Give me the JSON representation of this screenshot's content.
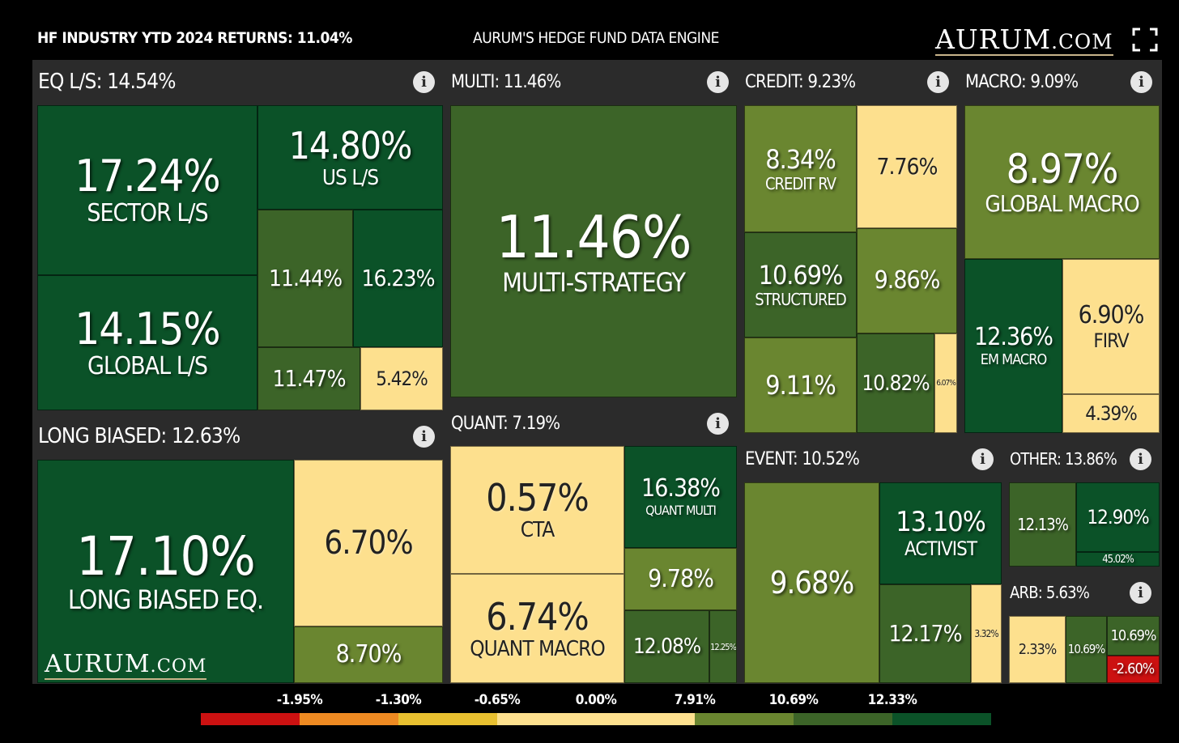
{
  "header": {
    "left": "HF INDUSTRY YTD 2024 RETURNS: 11.04%",
    "center": "AURUM'S HEDGE FUND DATA ENGINE",
    "logo_main": "AURUM",
    "logo_dot": ".COM",
    "fullscreen_icon": "fullscreen-icon"
  },
  "watermark": {
    "main": "AURUM",
    "dot": ".COM"
  },
  "colors": {
    "panel": "#2b2b2b",
    "dark_green": "#0b5228",
    "mid_green": "#3c6428",
    "olive": "#6a8630",
    "pale_yellow": "#fde08e",
    "red": "#cc1111"
  },
  "chart_data": {
    "type": "treemap",
    "groups": [
      {
        "id": "eq",
        "label": "EQ L/S: 14.54%",
        "value": 14.54,
        "tiles": [
          {
            "value_label": "17.24%",
            "name": "SECTOR L/S",
            "value": 17.24
          },
          {
            "value_label": "14.15%",
            "name": "GLOBAL L/S",
            "value": 14.15
          },
          {
            "value_label": "14.80%",
            "name": "US L/S",
            "value": 14.8
          },
          {
            "value_label": "11.44%",
            "name": "",
            "value": 11.44
          },
          {
            "value_label": "16.23%",
            "name": "",
            "value": 16.23
          },
          {
            "value_label": "11.47%",
            "name": "",
            "value": 11.47
          },
          {
            "value_label": "5.42%",
            "name": "",
            "value": 5.42
          }
        ]
      },
      {
        "id": "multi",
        "label": "MULTI: 11.46%",
        "value": 11.46,
        "tiles": [
          {
            "value_label": "11.46%",
            "name": "MULTI-STRATEGY",
            "value": 11.46
          }
        ]
      },
      {
        "id": "credit",
        "label": "CREDIT: 9.23%",
        "value": 9.23,
        "tiles": [
          {
            "value_label": "8.34%",
            "name": "CREDIT RV",
            "value": 8.34
          },
          {
            "value_label": "7.76%",
            "name": "",
            "value": 7.76
          },
          {
            "value_label": "10.69%",
            "name": "STRUCTURED",
            "value": 10.69
          },
          {
            "value_label": "9.86%",
            "name": "",
            "value": 9.86
          },
          {
            "value_label": "9.11%",
            "name": "",
            "value": 9.11
          },
          {
            "value_label": "10.82%",
            "name": "",
            "value": 10.82
          },
          {
            "value_label": "6.07%",
            "name": "",
            "value": 6.07
          }
        ]
      },
      {
        "id": "macro",
        "label": "MACRO: 9.09%",
        "value": 9.09,
        "tiles": [
          {
            "value_label": "8.97%",
            "name": "GLOBAL MACRO",
            "value": 8.97
          },
          {
            "value_label": "12.36%",
            "name": "EM MACRO",
            "value": 12.36
          },
          {
            "value_label": "6.90%",
            "name": "FIRV",
            "value": 6.9
          },
          {
            "value_label": "4.39%",
            "name": "",
            "value": 4.39
          }
        ]
      },
      {
        "id": "long",
        "label": "LONG BIASED: 12.63%",
        "value": 12.63,
        "tiles": [
          {
            "value_label": "17.10%",
            "name": "LONG BIASED EQ.",
            "value": 17.1
          },
          {
            "value_label": "6.70%",
            "name": "",
            "value": 6.7
          },
          {
            "value_label": "8.70%",
            "name": "",
            "value": 8.7
          }
        ]
      },
      {
        "id": "quant",
        "label": "QUANT: 7.19%",
        "value": 7.19,
        "tiles": [
          {
            "value_label": "0.57%",
            "name": "CTA",
            "value": 0.57
          },
          {
            "value_label": "6.74%",
            "name": "QUANT MACRO",
            "value": 6.74
          },
          {
            "value_label": "16.38%",
            "name": "QUANT MULTI",
            "value": 16.38
          },
          {
            "value_label": "9.78%",
            "name": "",
            "value": 9.78
          },
          {
            "value_label": "12.08%",
            "name": "",
            "value": 12.08
          },
          {
            "value_label": "12.25%",
            "name": "",
            "value": 12.25
          }
        ]
      },
      {
        "id": "event",
        "label": "EVENT: 10.52%",
        "value": 10.52,
        "tiles": [
          {
            "value_label": "9.68%",
            "name": "",
            "value": 9.68
          },
          {
            "value_label": "13.10%",
            "name": "ACTIVIST",
            "value": 13.1
          },
          {
            "value_label": "12.17%",
            "name": "",
            "value": 12.17
          },
          {
            "value_label": "3.32%",
            "name": "",
            "value": 3.32
          }
        ]
      },
      {
        "id": "other",
        "label": "OTHER: 13.86%",
        "value": 13.86,
        "tiles": [
          {
            "value_label": "12.13%",
            "name": "",
            "value": 12.13
          },
          {
            "value_label": "12.90%",
            "name": "",
            "value": 12.9
          },
          {
            "value_label": "45.02%",
            "name": "",
            "value": 45.02
          }
        ]
      },
      {
        "id": "arb",
        "label": "ARB: 5.63%",
        "value": 5.63,
        "tiles": [
          {
            "value_label": "2.33%",
            "name": "",
            "value": 2.33
          },
          {
            "value_label": "10.69%",
            "name": "",
            "value": 10.69
          },
          {
            "value_label": "10.69%",
            "name": "",
            "value": 10.69
          },
          {
            "value_label": "-2.60%",
            "name": "",
            "value": -2.6
          }
        ]
      }
    ],
    "legend": {
      "labels": [
        "-1.95%",
        "-1.30%",
        "-0.65%",
        "0.00%",
        "7.91%",
        "10.69%",
        "12.33%"
      ],
      "colors": [
        "#cc1111",
        "#cc1111",
        "#ee8a22",
        "#ee8a22",
        "#e8c030",
        "#e8c030",
        "#fde08e",
        "#fde08e",
        "#fde08e",
        "#fde08e",
        "#6a8630",
        "#6a8630",
        "#3c6428",
        "#3c6428",
        "#0b5228",
        "#0b5228"
      ]
    }
  }
}
